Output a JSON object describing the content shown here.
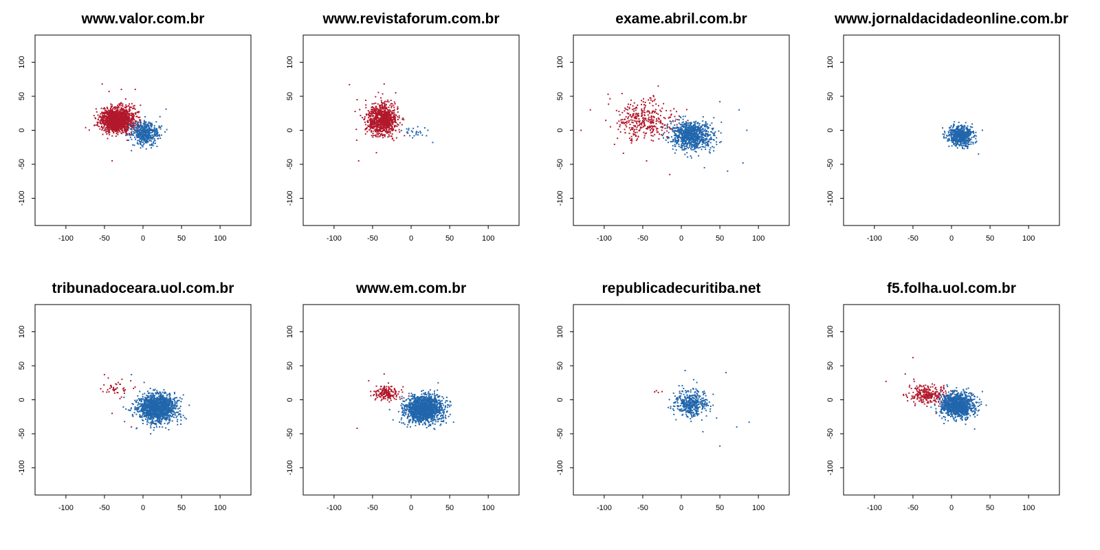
{
  "colors": {
    "red_cluster": "#b2182b",
    "blue_cluster": "#2166ac"
  },
  "chart_data": [
    {
      "type": "scatter",
      "title": "www.valor.com.br",
      "xlim": [
        -140,
        140
      ],
      "ylim": [
        -140,
        140
      ],
      "xticks": [
        -100,
        -50,
        0,
        50,
        100
      ],
      "yticks": [
        -100,
        -50,
        0,
        50,
        100
      ],
      "grid": false,
      "series": [
        {
          "color": "#b2182b",
          "cluster": {
            "n": 1400,
            "center": [
              -33,
              15
            ],
            "spread": [
              11,
              9
            ]
          },
          "points": [
            [
              -53,
              68
            ],
            [
              -28,
              60
            ],
            [
              -44,
              57
            ],
            [
              -40,
              -45
            ],
            [
              -10,
              60
            ],
            [
              -60,
              27
            ]
          ]
        },
        {
          "color": "#2166ac",
          "cluster": {
            "n": 450,
            "center": [
              3,
              -4
            ],
            "spread": [
              9,
              8
            ]
          },
          "points": [
            [
              30,
              31
            ],
            [
              -15,
              -30
            ],
            [
              22,
              20
            ]
          ]
        }
      ]
    },
    {
      "type": "scatter",
      "title": "www.revistaforum.com.br",
      "xlim": [
        -140,
        140
      ],
      "ylim": [
        -140,
        140
      ],
      "xticks": [
        -100,
        -50,
        0,
        50,
        100
      ],
      "yticks": [
        -100,
        -50,
        0,
        50,
        100
      ],
      "grid": false,
      "series": [
        {
          "color": "#b2182b",
          "cluster": {
            "n": 900,
            "center": [
              -38,
              15
            ],
            "spread": [
              10,
              11
            ]
          },
          "points": [
            [
              -80,
              67
            ],
            [
              -35,
              68
            ],
            [
              -68,
              -45
            ],
            [
              -45,
              -33
            ],
            [
              -20,
              55
            ],
            [
              -70,
              45
            ]
          ]
        },
        {
          "color": "#2166ac",
          "cluster": {
            "n": 25,
            "center": [
              5,
              -3
            ],
            "spread": [
              9,
              3
            ]
          },
          "points": [
            [
              28,
              -18
            ],
            [
              20,
              -8
            ],
            [
              -5,
              -3
            ]
          ]
        }
      ]
    },
    {
      "type": "scatter",
      "title": "exame.abril.com.br",
      "xlim": [
        -140,
        140
      ],
      "ylim": [
        -140,
        140
      ],
      "xticks": [
        -100,
        -50,
        0,
        50,
        100
      ],
      "yticks": [
        -100,
        -50,
        0,
        50,
        100
      ],
      "grid": false,
      "series": [
        {
          "color": "#b2182b",
          "cluster": {
            "n": 350,
            "center": [
              -48,
              15
            ],
            "spread": [
              18,
              14
            ]
          },
          "points": [
            [
              -130,
              0
            ],
            [
              -118,
              30
            ],
            [
              -95,
              53
            ],
            [
              -45,
              -45
            ],
            [
              -15,
              -65
            ],
            [
              -30,
              65
            ]
          ]
        },
        {
          "color": "#2166ac",
          "cluster": {
            "n": 900,
            "center": [
              14,
              -8
            ],
            "spread": [
              13,
              10
            ]
          },
          "points": [
            [
              85,
              0
            ],
            [
              80,
              -48
            ],
            [
              60,
              -60
            ],
            [
              75,
              30
            ],
            [
              50,
              42
            ],
            [
              30,
              -55
            ]
          ]
        }
      ]
    },
    {
      "type": "scatter",
      "title": "www.jornaldacidadeonline.com.br",
      "xlim": [
        -140,
        140
      ],
      "ylim": [
        -140,
        140
      ],
      "xticks": [
        -100,
        -50,
        0,
        50,
        100
      ],
      "yticks": [
        -100,
        -50,
        0,
        50,
        100
      ],
      "grid": false,
      "series": [
        {
          "color": "#b2182b",
          "cluster": {
            "n": 0,
            "center": [
              0,
              0
            ],
            "spread": [
              0,
              0
            ]
          },
          "points": []
        },
        {
          "color": "#2166ac",
          "cluster": {
            "n": 600,
            "center": [
              12,
              -8
            ],
            "spread": [
              8,
              7
            ]
          },
          "points": [
            [
              35,
              -35
            ],
            [
              -10,
              -10
            ],
            [
              40,
              0
            ]
          ]
        }
      ]
    },
    {
      "type": "scatter",
      "title": "tribunadoceara.uol.com.br",
      "xlim": [
        -140,
        140
      ],
      "ylim": [
        -140,
        140
      ],
      "xticks": [
        -100,
        -50,
        0,
        50,
        100
      ],
      "yticks": [
        -100,
        -50,
        0,
        50,
        100
      ],
      "grid": false,
      "series": [
        {
          "color": "#b2182b",
          "cluster": {
            "n": 40,
            "center": [
              -35,
              15
            ],
            "spread": [
              9,
              6
            ]
          },
          "points": [
            [
              -50,
              37
            ],
            [
              -45,
              32
            ],
            [
              -15,
              -40
            ],
            [
              -40,
              -20
            ],
            [
              -52,
              12
            ]
          ]
        },
        {
          "color": "#2166ac",
          "cluster": {
            "n": 1500,
            "center": [
              18,
              -12
            ],
            "spread": [
              12,
              10
            ]
          },
          "points": [
            [
              56,
              -28
            ],
            [
              10,
              -50
            ],
            [
              -15,
              37
            ],
            [
              60,
              -8
            ]
          ]
        }
      ]
    },
    {
      "type": "scatter",
      "title": "www.em.com.br",
      "xlim": [
        -140,
        140
      ],
      "ylim": [
        -140,
        140
      ],
      "xticks": [
        -100,
        -50,
        0,
        50,
        100
      ],
      "yticks": [
        -100,
        -50,
        0,
        50,
        100
      ],
      "grid": false,
      "series": [
        {
          "color": "#b2182b",
          "cluster": {
            "n": 170,
            "center": [
              -32,
              10
            ],
            "spread": [
              9,
              5
            ]
          },
          "points": [
            [
              -70,
              -42
            ],
            [
              -55,
              28
            ],
            [
              -35,
              38
            ],
            [
              -45,
              20
            ]
          ]
        },
        {
          "color": "#2166ac",
          "cluster": {
            "n": 1500,
            "center": [
              17,
              -13
            ],
            "spread": [
              12,
              10
            ]
          },
          "points": [
            [
              55,
              -33
            ],
            [
              35,
              25
            ],
            [
              -5,
              -40
            ],
            [
              50,
              -10
            ]
          ]
        }
      ]
    },
    {
      "type": "scatter",
      "title": "republicadecuritiba.net",
      "xlim": [
        -140,
        140
      ],
      "ylim": [
        -140,
        140
      ],
      "xticks": [
        -100,
        -50,
        0,
        50,
        100
      ],
      "yticks": [
        -100,
        -50,
        0,
        50,
        100
      ],
      "grid": false,
      "series": [
        {
          "color": "#b2182b",
          "cluster": {
            "n": 3,
            "center": [
              -30,
              10
            ],
            "spread": [
              3,
              2
            ]
          },
          "points": [
            [
              -25,
              12
            ]
          ]
        },
        {
          "color": "#2166ac",
          "cluster": {
            "n": 420,
            "center": [
              12,
              -6
            ],
            "spread": [
              11,
              9
            ]
          },
          "points": [
            [
              50,
              -68
            ],
            [
              58,
              40
            ],
            [
              88,
              -33
            ],
            [
              5,
              43
            ],
            [
              72,
              -40
            ],
            [
              28,
              -47
            ]
          ]
        }
      ]
    },
    {
      "type": "scatter",
      "title": "f5.folha.uol.com.br",
      "xlim": [
        -140,
        140
      ],
      "ylim": [
        -140,
        140
      ],
      "xticks": [
        -100,
        -50,
        0,
        50,
        100
      ],
      "yticks": [
        -100,
        -50,
        0,
        50,
        100
      ],
      "grid": false,
      "series": [
        {
          "color": "#b2182b",
          "cluster": {
            "n": 260,
            "center": [
              -30,
              8
            ],
            "spread": [
              12,
              7
            ]
          },
          "points": [
            [
              -85,
              27
            ],
            [
              -50,
              62
            ],
            [
              -60,
              38
            ],
            [
              -20,
              -20
            ],
            [
              -45,
              20
            ]
          ]
        },
        {
          "color": "#2166ac",
          "cluster": {
            "n": 1100,
            "center": [
              8,
              -8
            ],
            "spread": [
              11,
              9
            ]
          },
          "points": [
            [
              40,
              12
            ],
            [
              30,
              -43
            ],
            [
              45,
              -8
            ],
            [
              -10,
              -25
            ]
          ]
        }
      ]
    }
  ]
}
